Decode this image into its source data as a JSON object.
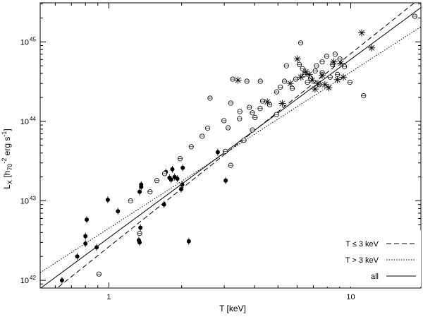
{
  "chart_data": {
    "type": "scatter",
    "xscale": "log",
    "yscale": "log",
    "xlim": [
      0.52,
      19.5
    ],
    "ylim": [
      8e+41,
      3.1e+45
    ],
    "xlabel": "T [keV]",
    "ylabel": "L_X [h_70^-2 erg s^-1]",
    "x_ticks": [
      {
        "value": 1,
        "label": "1"
      },
      {
        "value": 10,
        "label": "10"
      }
    ],
    "y_ticks": [
      {
        "value": 1e+42,
        "label": "10",
        "exp": "42"
      },
      {
        "value": 1e+43,
        "label": "10",
        "exp": "43"
      },
      {
        "value": 1e+44,
        "label": "10",
        "exp": "44"
      },
      {
        "value": 1e+45,
        "label": "10",
        "exp": "45"
      }
    ],
    "grid": false,
    "legend_position": "bottom-right",
    "legend": [
      {
        "name": "T ≤ 3 keV",
        "style": "dashed"
      },
      {
        "name": "T > 3 keV",
        "style": "dotted"
      },
      {
        "name": "all",
        "style": "solid"
      }
    ],
    "fit_lines": [
      {
        "name": "T ≤ 3 keV",
        "style": "dashed",
        "points": [
          [
            0.52,
            5.4e+41
          ],
          [
            19.5,
            3.6e+45
          ]
        ]
      },
      {
        "name": "T > 3 keV",
        "style": "dotted",
        "points": [
          [
            0.52,
            1.25e+42
          ],
          [
            19.5,
            1.55e+45
          ]
        ]
      },
      {
        "name": "all",
        "style": "solid",
        "points": [
          [
            0.52,
            7.9e+41
          ],
          [
            19.5,
            2.7e+45
          ]
        ]
      }
    ],
    "series": [
      {
        "marker": "filled-circle",
        "points": [
          [
            0.64,
            1e+42
          ],
          [
            0.74,
            2e+42
          ],
          [
            0.8,
            3.6e+42
          ],
          [
            0.8,
            2.9e+42
          ],
          [
            0.81,
            5.8e+42
          ],
          [
            0.89,
            2.6e+42
          ],
          [
            0.99,
            1.03e+43
          ],
          [
            1.09,
            7.4e+42
          ],
          [
            1.33,
            3.2e+42
          ],
          [
            1.34,
            3e+42
          ],
          [
            1.35,
            4.6e+42
          ],
          [
            1.34,
            1.3e+43
          ],
          [
            1.36,
            1.5e+43
          ],
          [
            1.36,
            1.6e+43
          ],
          [
            1.69,
            9e+42
          ],
          [
            1.72,
            2.3e+43
          ],
          [
            1.78,
            1.95e+43
          ],
          [
            1.81,
            1.85e+43
          ],
          [
            1.83,
            2.5e+43
          ],
          [
            1.87,
            2e+43
          ],
          [
            1.92,
            1.9e+43
          ],
          [
            1.99,
            1.4e+43
          ],
          [
            2.01,
            1.6e+43
          ],
          [
            2.02,
            2.6e+43
          ],
          [
            2.14,
            3.1e+42
          ],
          [
            2.82,
            4.1e+43
          ],
          [
            3.04,
            1.8e+43
          ]
        ]
      },
      {
        "marker": "open-circle",
        "points": [
          [
            0.91,
            1.2e+42
          ],
          [
            1.23,
            1e+43
          ],
          [
            1.34,
            3.9e+42
          ],
          [
            1.48,
            1.3e+43
          ],
          [
            1.58,
            1.8e+43
          ],
          [
            1.7,
            2.2e+43
          ],
          [
            1.97,
            3.4e+43
          ],
          [
            2.19,
            4.8e+43
          ],
          [
            2.43,
            6.5e+43
          ],
          [
            2.56,
            8.2e+43
          ],
          [
            2.62,
            1.96e+44
          ],
          [
            2.99,
            1.02e+44
          ],
          [
            3.03,
            4.2e+43
          ],
          [
            3.11,
            8.3e+43
          ],
          [
            3.19,
            2.8e+43
          ],
          [
            3.25,
            3.4e+44
          ],
          [
            3.19,
            1.7e+44
          ],
          [
            3.48,
            1.33e+44
          ],
          [
            3.47,
            1.08e+44
          ],
          [
            3.62,
            5.8e+43
          ],
          [
            3.72,
            3.2e+44
          ],
          [
            3.81,
            1.5e+44
          ],
          [
            3.92,
            7.8e+43
          ],
          [
            3.92,
            1.28e+44
          ],
          [
            4.02,
            1.12e+44
          ],
          [
            4.22,
            1.45e+44
          ],
          [
            4.23,
            3.2e+44
          ],
          [
            4.32,
            1.8e+44
          ],
          [
            4.62,
            1.62e+44
          ],
          [
            4.93,
            1.22e+44
          ],
          [
            4.94,
            2.35e+44
          ],
          [
            5.12,
            2.7e+44
          ],
          [
            5.32,
            3.2e+44
          ],
          [
            5.42,
            5e+44
          ],
          [
            5.73,
            2.6e+44
          ],
          [
            5.92,
            3.4e+44
          ],
          [
            6.13,
            5.2e+44
          ],
          [
            6.21,
            9.7e+44
          ],
          [
            6.32,
            4.6e+44
          ],
          [
            6.42,
            3.9e+44
          ],
          [
            6.62,
            3.1e+44
          ],
          [
            6.82,
            3.5e+44
          ],
          [
            7.13,
            4.3e+44
          ],
          [
            7.22,
            5e+44
          ],
          [
            7.42,
            2.9e+44
          ],
          [
            7.62,
            5.6e+44
          ],
          [
            7.62,
            4.1e+44
          ],
          [
            7.95,
            6.6e+44
          ],
          [
            8.22,
            3.6e+44
          ],
          [
            8.41,
            5.2e+44
          ],
          [
            8.62,
            7e+44
          ],
          [
            8.81,
            3.9e+44
          ],
          [
            9.02,
            6.1e+44
          ],
          [
            9.42,
            4.9e+44
          ],
          [
            9.92,
            3.1e+44
          ],
          [
            11.3,
            2.1e+44
          ],
          [
            18.4,
            2.1e+45
          ]
        ]
      },
      {
        "marker": "asterisk",
        "points": [
          [
            3.42,
            3.3e+44
          ],
          [
            4.52,
            1.76e+44
          ],
          [
            5.21,
            1.68e+44
          ],
          [
            5.62,
            3e+44
          ],
          [
            6.02,
            6.1e+44
          ],
          [
            6.22,
            3.6e+44
          ],
          [
            6.52,
            4.2e+44
          ],
          [
            6.73,
            3.9e+44
          ],
          [
            6.93,
            3.3e+44
          ],
          [
            7.12,
            2.55e+44
          ],
          [
            7.32,
            3e+44
          ],
          [
            7.62,
            3.8e+44
          ],
          [
            7.82,
            2.9e+44
          ],
          [
            8.12,
            2.65e+44
          ],
          [
            8.52,
            5.6e+44
          ],
          [
            8.81,
            3.35e+44
          ],
          [
            9.32,
            3.6e+44
          ],
          [
            9.12,
            5.4e+44
          ],
          [
            11.1,
            1.3e+45
          ],
          [
            12.2,
            8.4e+44
          ]
        ]
      }
    ]
  }
}
